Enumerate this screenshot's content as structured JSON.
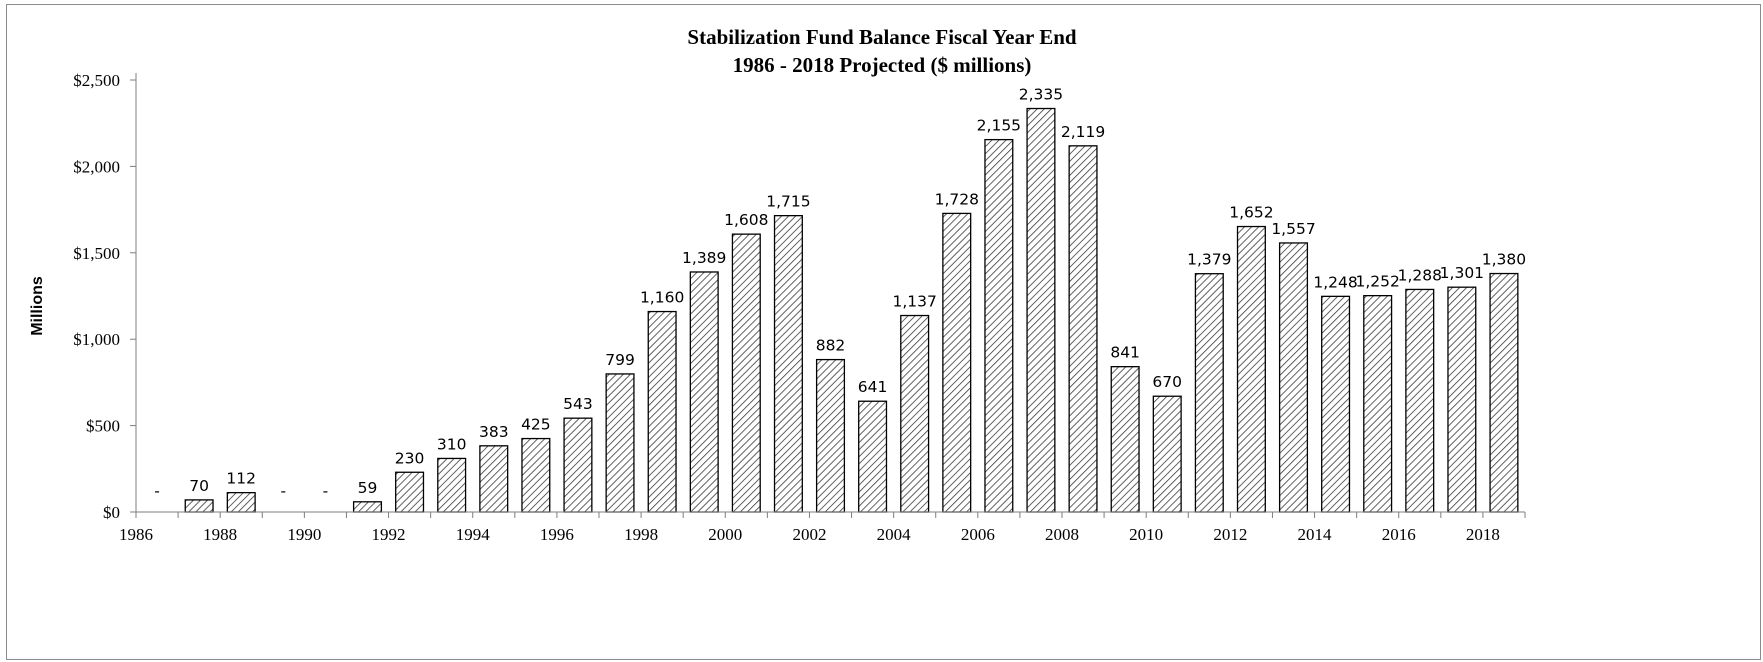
{
  "chart_data": {
    "type": "bar",
    "title": "Stabilization  Fund Balance Fiscal Year End",
    "subtitle": "1986 - 2018 Projected ($ millions)",
    "ylabel": "Millions",
    "xlabel": "",
    "ylim": [
      0,
      2500
    ],
    "y_ticks": [
      0,
      500,
      1000,
      1500,
      2000,
      2500
    ],
    "y_tick_labels": [
      "$0",
      "$500",
      "$1,000",
      "$1,500",
      "$2,000",
      "$2,500"
    ],
    "categories": [
      "1986",
      "1987",
      "1988",
      "1989",
      "1990",
      "1991",
      "1992",
      "1993",
      "1994",
      "1995",
      "1996",
      "1997",
      "1998",
      "1999",
      "2000",
      "2001",
      "2002",
      "2003",
      "2004",
      "2005",
      "2006",
      "2007",
      "2008",
      "2009",
      "2010",
      "2011",
      "2012",
      "2013",
      "2014",
      "2015",
      "2016",
      "2017",
      "2018"
    ],
    "x_tick_labels": [
      "1986",
      "",
      "1988",
      "",
      "1990",
      "",
      "1992",
      "",
      "1994",
      "",
      "1996",
      "",
      "1998",
      "",
      "2000",
      "",
      "2002",
      "",
      "2004",
      "",
      "2006",
      "",
      "2008",
      "",
      "2010",
      "",
      "2012",
      "",
      "2014",
      "",
      "2016",
      "",
      "2018"
    ],
    "values": [
      0,
      70,
      112,
      0,
      0,
      59,
      230,
      310,
      383,
      425,
      543,
      799,
      1160,
      1389,
      1608,
      1715,
      882,
      641,
      1137,
      1728,
      2155,
      2335,
      2119,
      841,
      670,
      1379,
      1652,
      1557,
      1248,
      1252,
      1288,
      1301,
      1380
    ],
    "data_labels": [
      "-",
      "70",
      "112",
      "-",
      "-",
      "59",
      "230",
      "310",
      "383",
      "425",
      "543",
      "799",
      "1,160",
      "1,389",
      "1,608",
      "1,715",
      "882",
      "641",
      "1,137",
      "1,728",
      "2,155",
      "2,335",
      "2,119",
      "841",
      "670",
      "1,379",
      "1,652",
      "1,557",
      "1,248",
      "1,252",
      "1,288",
      "1,301",
      "1,380"
    ],
    "grid": false,
    "legend": "none",
    "bar_fill": "hatched",
    "colors": {
      "bar_stroke": "#000000",
      "hatch": "#3a3a3a",
      "axis": "#7f7f7f",
      "frame": "#8c8c8c"
    }
  }
}
